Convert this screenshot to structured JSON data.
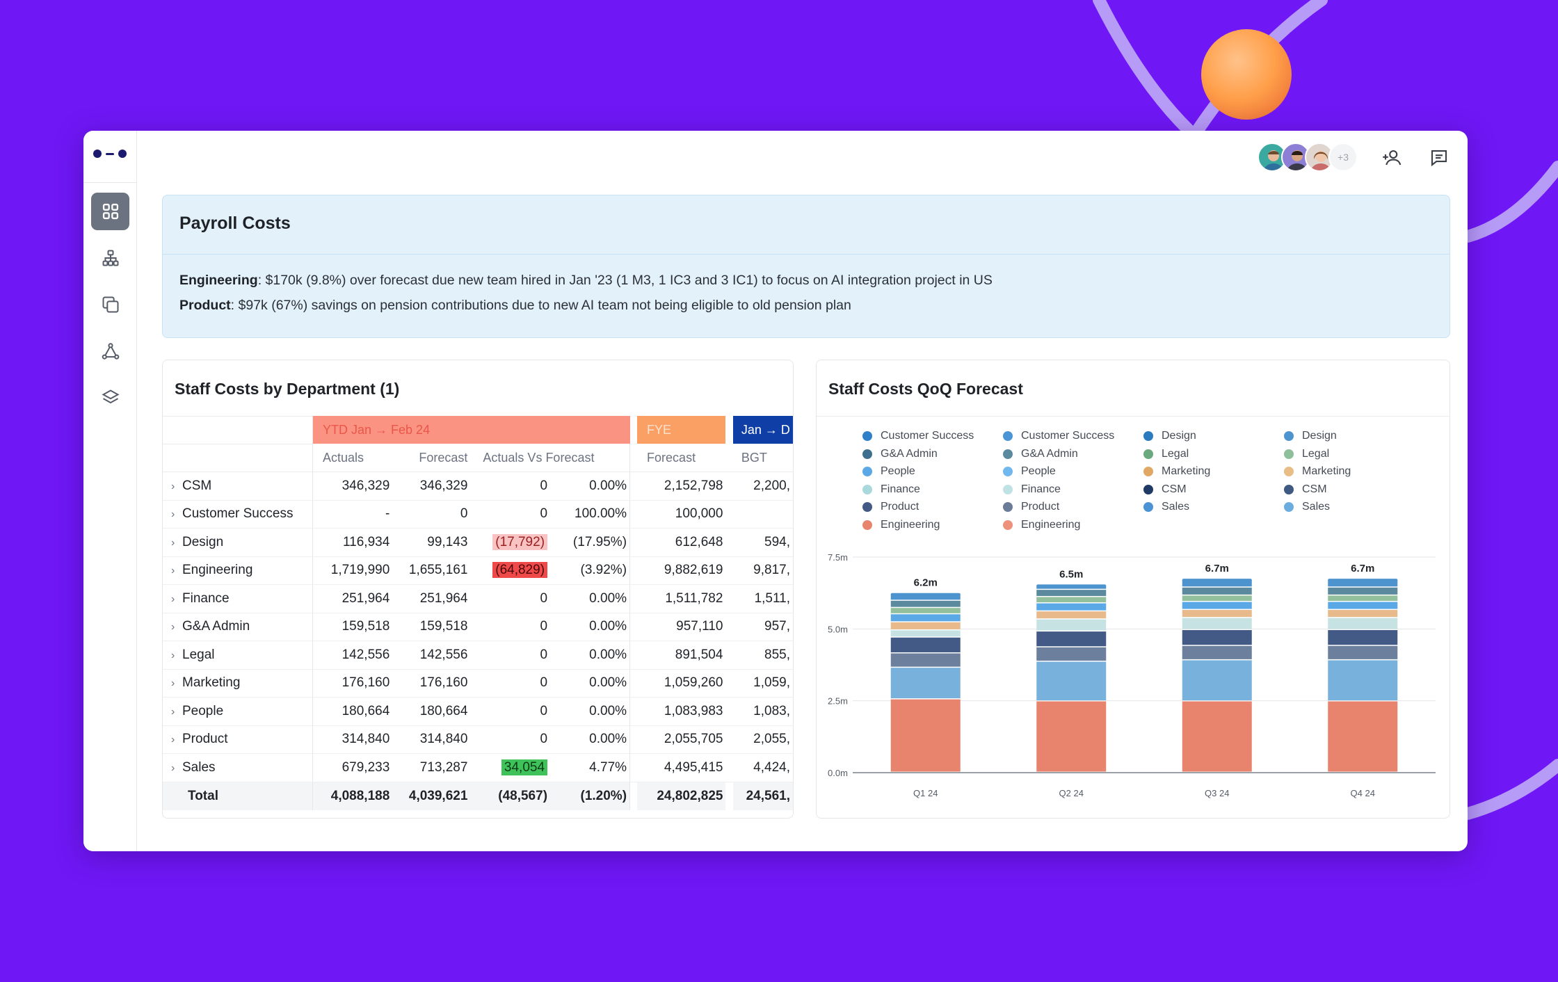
{
  "colors": {
    "background": "#6f17f5",
    "ring": "#b79cf7",
    "orb": "#ff9f4a",
    "callout_bg": "#e3f1fb",
    "ytd_header": "#fb9382",
    "fye_header": "#fba065",
    "jan_header": "#0f3fa6",
    "variance_bad_light": "#f9c3c3",
    "variance_bad": "#ef4a4a",
    "variance_good": "#3fc25a"
  },
  "sidebar": {
    "logo": "logo-icon",
    "items": [
      {
        "icon": "dashboard-icon",
        "active": true
      },
      {
        "icon": "org-chart-icon",
        "active": false
      },
      {
        "icon": "copy-icon",
        "active": false
      },
      {
        "icon": "network-icon",
        "active": false
      },
      {
        "icon": "layers-icon",
        "active": false
      }
    ]
  },
  "topbar": {
    "avatars_more": "+3",
    "add_user_icon": "add-user-icon",
    "comment_icon": "comment-icon"
  },
  "callout": {
    "title": "Payroll Costs",
    "lines": [
      {
        "label": "Engineering",
        "text": ": $170k (9.8%) over forecast due new team hired in Jan '23 (1 M3, 1 IC3 and 3 IC1) to focus on AI integration project in US"
      },
      {
        "label": "Product",
        "text": ": $97k (67%) savings on pension contributions due to new AI team not being eligible to old pension plan"
      }
    ]
  },
  "table_card": {
    "title": "Staff Costs by Department (1)",
    "groups": {
      "ytd": "YTD Jan → Feb 24",
      "fye": "FYE",
      "jan": "Jan → D"
    },
    "columns": {
      "actuals": "Actuals",
      "forecast": "Forecast",
      "avf": "Actuals Vs Forecast",
      "fye_forecast": "Forecast",
      "bgt": "BGT"
    },
    "rows": [
      {
        "name": "CSM",
        "actuals": "346,329",
        "forecast": "346,329",
        "var": "0",
        "pct": "0.00%",
        "fye": "2,152,798",
        "bgt": "2,200,",
        "flag": ""
      },
      {
        "name": "Customer Success",
        "actuals": "-",
        "forecast": "0",
        "var": "0",
        "pct": "100.00%",
        "fye": "100,000",
        "bgt": "",
        "flag": ""
      },
      {
        "name": "Design",
        "actuals": "116,934",
        "forecast": "99,143",
        "var": "(17,792)",
        "pct": "(17.95%)",
        "fye": "612,648",
        "bgt": "594,",
        "flag": "bad-light"
      },
      {
        "name": "Engineering",
        "actuals": "1,719,990",
        "forecast": "1,655,161",
        "var": "(64,829)",
        "pct": "(3.92%)",
        "fye": "9,882,619",
        "bgt": "9,817,",
        "flag": "bad"
      },
      {
        "name": "Finance",
        "actuals": "251,964",
        "forecast": "251,964",
        "var": "0",
        "pct": "0.00%",
        "fye": "1,511,782",
        "bgt": "1,511,",
        "flag": ""
      },
      {
        "name": "G&A Admin",
        "actuals": "159,518",
        "forecast": "159,518",
        "var": "0",
        "pct": "0.00%",
        "fye": "957,110",
        "bgt": "957,",
        "flag": ""
      },
      {
        "name": "Legal",
        "actuals": "142,556",
        "forecast": "142,556",
        "var": "0",
        "pct": "0.00%",
        "fye": "891,504",
        "bgt": "855,",
        "flag": ""
      },
      {
        "name": "Marketing",
        "actuals": "176,160",
        "forecast": "176,160",
        "var": "0",
        "pct": "0.00%",
        "fye": "1,059,260",
        "bgt": "1,059,",
        "flag": ""
      },
      {
        "name": "People",
        "actuals": "180,664",
        "forecast": "180,664",
        "var": "0",
        "pct": "0.00%",
        "fye": "1,083,983",
        "bgt": "1,083,",
        "flag": ""
      },
      {
        "name": "Product",
        "actuals": "314,840",
        "forecast": "314,840",
        "var": "0",
        "pct": "0.00%",
        "fye": "2,055,705",
        "bgt": "2,055,",
        "flag": ""
      },
      {
        "name": "Sales",
        "actuals": "679,233",
        "forecast": "713,287",
        "var": "34,054",
        "pct": "4.77%",
        "fye": "4,495,415",
        "bgt": "4,424,",
        "flag": "good"
      }
    ],
    "total": {
      "name": "Total",
      "actuals": "4,088,188",
      "forecast": "4,039,621",
      "var": "(48,567)",
      "pct": "(1.20%)",
      "fye": "24,802,825",
      "bgt": "24,561,"
    }
  },
  "chart_card": {
    "title": "Staff Costs QoQ Forecast",
    "legend_columns": [
      [
        {
          "label": "Customer Success",
          "color": "#2f80c8"
        },
        {
          "label": "G&A Admin",
          "color": "#3f6f8f"
        },
        {
          "label": "People",
          "color": "#5aa8e6"
        },
        {
          "label": "Finance",
          "color": "#a9d9dc"
        },
        {
          "label": "Product",
          "color": "#425a85"
        },
        {
          "label": "Engineering",
          "color": "#e8836d"
        }
      ],
      [
        {
          "label": "Customer Success",
          "color": "#4a95d6"
        },
        {
          "label": "G&A Admin",
          "color": "#5b8a9e"
        },
        {
          "label": "People",
          "color": "#71b8ee"
        },
        {
          "label": "Finance",
          "color": "#bfe3e4"
        },
        {
          "label": "Product",
          "color": "#6b7c99"
        },
        {
          "label": "Engineering",
          "color": "#ee917c"
        }
      ],
      [
        {
          "label": "Design",
          "color": "#2c7bbf"
        },
        {
          "label": "Legal",
          "color": "#6aa87e"
        },
        {
          "label": "Marketing",
          "color": "#e0a864"
        },
        {
          "label": "CSM",
          "color": "#1f3a64"
        },
        {
          "label": "Sales",
          "color": "#4b93d4"
        }
      ],
      [
        {
          "label": "Design",
          "color": "#4d93cd"
        },
        {
          "label": "Legal",
          "color": "#8ebf9b"
        },
        {
          "label": "Marketing",
          "color": "#e8be86"
        },
        {
          "label": "CSM",
          "color": "#3e5a80"
        },
        {
          "label": "Sales",
          "color": "#6caddf"
        }
      ]
    ]
  },
  "chart_data": {
    "type": "bar",
    "stacked": true,
    "title": "Staff Costs QoQ Forecast",
    "categories": [
      "Q1 24",
      "Q2 24",
      "Q3 24",
      "Q4 24"
    ],
    "ylim": [
      0,
      7.5
    ],
    "yticks": [
      0,
      2.5,
      5.0,
      7.5
    ],
    "ytick_labels": [
      "0.0m",
      "2.5m",
      "5.0m",
      "7.5m"
    ],
    "total_labels": [
      "6.2m",
      "6.5m",
      "6.7m",
      "6.7m"
    ],
    "totals": [
      6.2,
      6.5,
      6.7,
      6.7
    ],
    "series": [
      {
        "name": "Engineering",
        "color": "#e8836d",
        "values": [
          2.55,
          2.48,
          2.48,
          2.48
        ]
      },
      {
        "name": "People",
        "color": "#78b1dc",
        "values": [
          1.1,
          1.38,
          1.43,
          1.43
        ]
      },
      {
        "name": "Product",
        "color": "#6c7f9c",
        "values": [
          0.5,
          0.5,
          0.5,
          0.5
        ]
      },
      {
        "name": "CSM",
        "color": "#425a85",
        "values": [
          0.55,
          0.55,
          0.55,
          0.55
        ]
      },
      {
        "name": "Finance",
        "color": "#c6e2e3",
        "values": [
          0.25,
          0.42,
          0.42,
          0.42
        ]
      },
      {
        "name": "Marketing",
        "color": "#e8b98a",
        "values": [
          0.28,
          0.28,
          0.28,
          0.28
        ]
      },
      {
        "name": "Customer Success",
        "color": "#5aa8e6",
        "values": [
          0.28,
          0.28,
          0.28,
          0.28
        ]
      },
      {
        "name": "Legal",
        "color": "#92bf9c",
        "values": [
          0.22,
          0.22,
          0.22,
          0.22
        ]
      },
      {
        "name": "G&A Admin",
        "color": "#5b8a9e",
        "values": [
          0.25,
          0.25,
          0.28,
          0.28
        ]
      },
      {
        "name": "Design",
        "color": "#4d93cd",
        "values": [
          0.22,
          0.14,
          0.26,
          0.26
        ]
      }
    ]
  }
}
